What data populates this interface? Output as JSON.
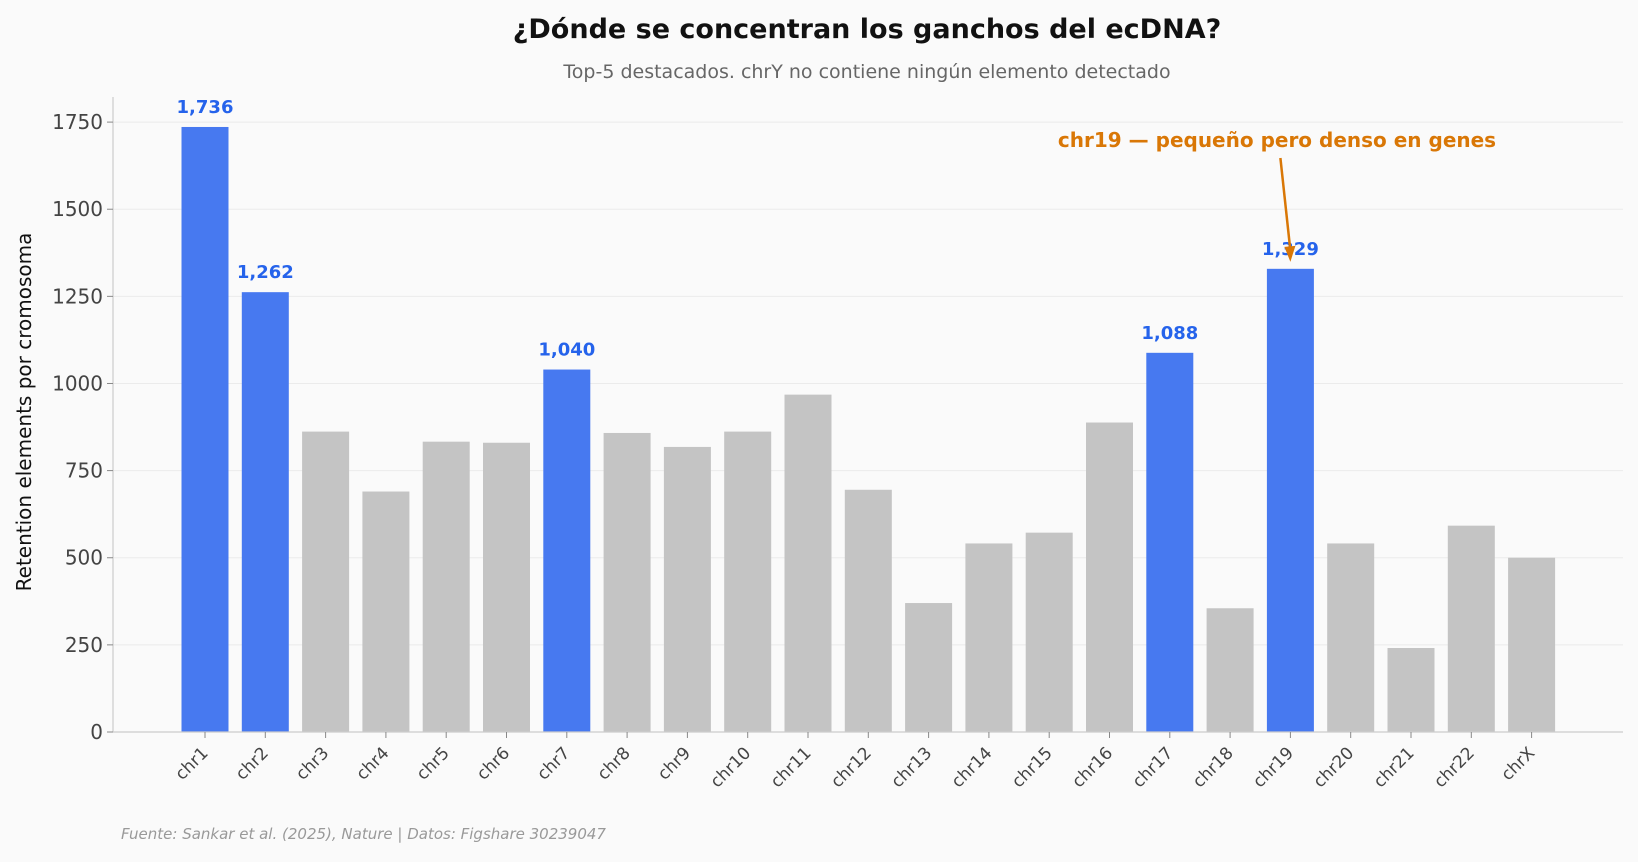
{
  "chart_data": {
    "type": "bar",
    "title": "¿Dónde se concentran los ganchos del ecDNA?",
    "subtitle": "Top-5 destacados. chrY no contiene ningún elemento detectado",
    "ylabel": "Retention elements por cromosoma",
    "xlabel": "",
    "categories": [
      "chr1",
      "chr2",
      "chr3",
      "chr4",
      "chr5",
      "chr6",
      "chr7",
      "chr8",
      "chr9",
      "chr10",
      "chr11",
      "chr12",
      "chr13",
      "chr14",
      "chr15",
      "chr16",
      "chr17",
      "chr18",
      "chr19",
      "chr20",
      "chr21",
      "chr22",
      "chrX"
    ],
    "values": [
      1736,
      1262,
      862,
      690,
      833,
      830,
      1040,
      858,
      818,
      862,
      968,
      695,
      370,
      541,
      572,
      888,
      1088,
      355,
      1329,
      541,
      241,
      592,
      500
    ],
    "highlight": [
      true,
      true,
      false,
      false,
      false,
      false,
      true,
      false,
      false,
      false,
      false,
      false,
      false,
      false,
      false,
      false,
      true,
      false,
      true,
      false,
      false,
      false,
      false
    ],
    "data_labels": [
      "1,736",
      "1,262",
      "",
      "",
      "",
      "",
      "1,040",
      "",
      "",
      "",
      "",
      "",
      "",
      "",
      "",
      "",
      "1,088",
      "",
      "1,329",
      "",
      "",
      "",
      ""
    ],
    "yticks": [
      0,
      250,
      500,
      750,
      1000,
      1250,
      1500,
      1750
    ],
    "ylim": [
      0,
      1822
    ],
    "grid": "horizontal",
    "annotation": {
      "text": "chr19 — pequeño pero denso en genes",
      "target_category": "chr19"
    },
    "source": "Fuente: Sankar et al. (2025), Nature | Datos: Figshare 30239047",
    "colors": {
      "highlight": "#4779f0",
      "base": "#c4c4c4",
      "label": "#2563eb",
      "annotation": "#d97706",
      "grid": "#ebebeb",
      "axis": "#cccccc"
    }
  }
}
